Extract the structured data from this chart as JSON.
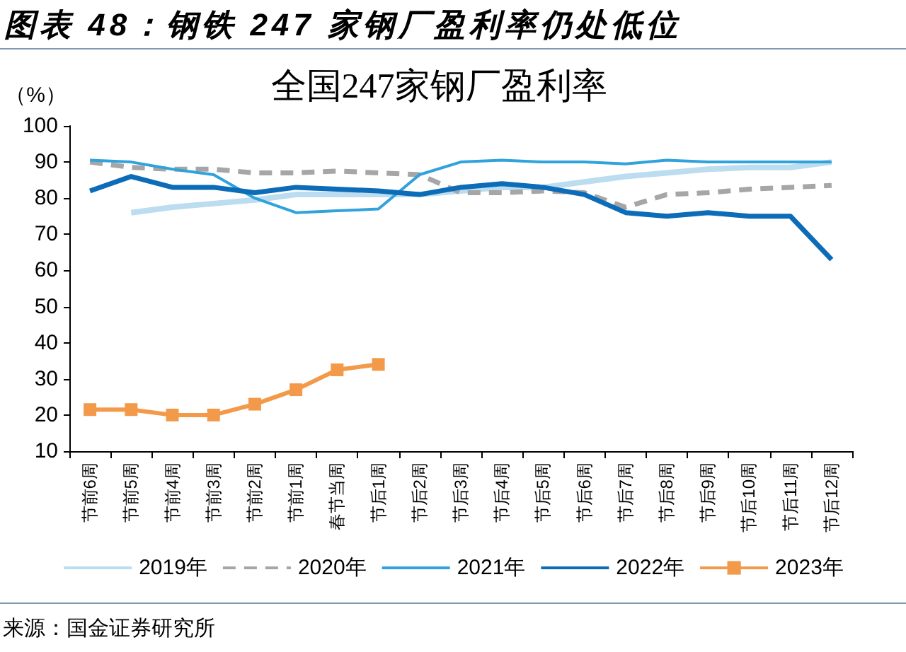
{
  "chart_data": {
    "type": "line",
    "title": "图表 48：钢铁 247 家钢厂盈利率仍处低位",
    "subtitle": "全国247家钢厂盈利率",
    "ylabel": "（%）",
    "annotations": [
      "来源：国金证券研究所"
    ],
    "categories": [
      "节前6周",
      "节前5周",
      "节前4周",
      "节前3周",
      "节前2周",
      "节前1周",
      "春节当周",
      "节后1周",
      "节后2周",
      "节后3周",
      "节后4周",
      "节后5周",
      "节后6周",
      "节后7周",
      "节后8周",
      "节后9周",
      "节后10周",
      "节后11周",
      "节后12周"
    ],
    "series": [
      {
        "name": "2019年",
        "color": "#bcdcf0",
        "values": [
          null,
          76,
          77.5,
          78.5,
          79.5,
          81,
          81,
          81,
          81,
          82,
          83,
          83,
          84.5,
          86,
          87,
          88,
          88.5,
          88.5,
          90
        ]
      },
      {
        "name": "2020年",
        "color": "#a6a6a6",
        "line_style": "dashed",
        "values": [
          90,
          88.5,
          88,
          88,
          87,
          87,
          87.5,
          87,
          86.5,
          81.5,
          81.5,
          82,
          81.5,
          77.5,
          81,
          81.5,
          82.5,
          83,
          83.5
        ]
      },
      {
        "name": "2021年",
        "color": "#30a2dc",
        "values": [
          90.5,
          90,
          88,
          86.5,
          80,
          76,
          76.5,
          77,
          86.5,
          90,
          90.5,
          90,
          90,
          89.5,
          90.5,
          90,
          90,
          90,
          90
        ]
      },
      {
        "name": "2022年",
        "color": "#0c6cb8",
        "values": [
          82,
          86,
          83,
          83,
          81.5,
          83,
          82.5,
          82,
          81,
          83,
          84,
          83,
          81,
          76,
          75,
          76,
          75,
          75,
          63
        ]
      },
      {
        "name": "2023年",
        "color": "#f39a4a",
        "marker": "square",
        "values": [
          21.5,
          21.5,
          20,
          20,
          23,
          27,
          32.5,
          34,
          null,
          null,
          null,
          null,
          null,
          null,
          null,
          null,
          null,
          null,
          null
        ]
      }
    ],
    "ylim": [
      10,
      100
    ],
    "yticks": [
      10,
      20,
      30,
      40,
      50,
      60,
      70,
      80,
      90,
      100
    ],
    "grid": false,
    "legend": "bottom",
    "marker": "none",
    "line_style": "solid"
  }
}
